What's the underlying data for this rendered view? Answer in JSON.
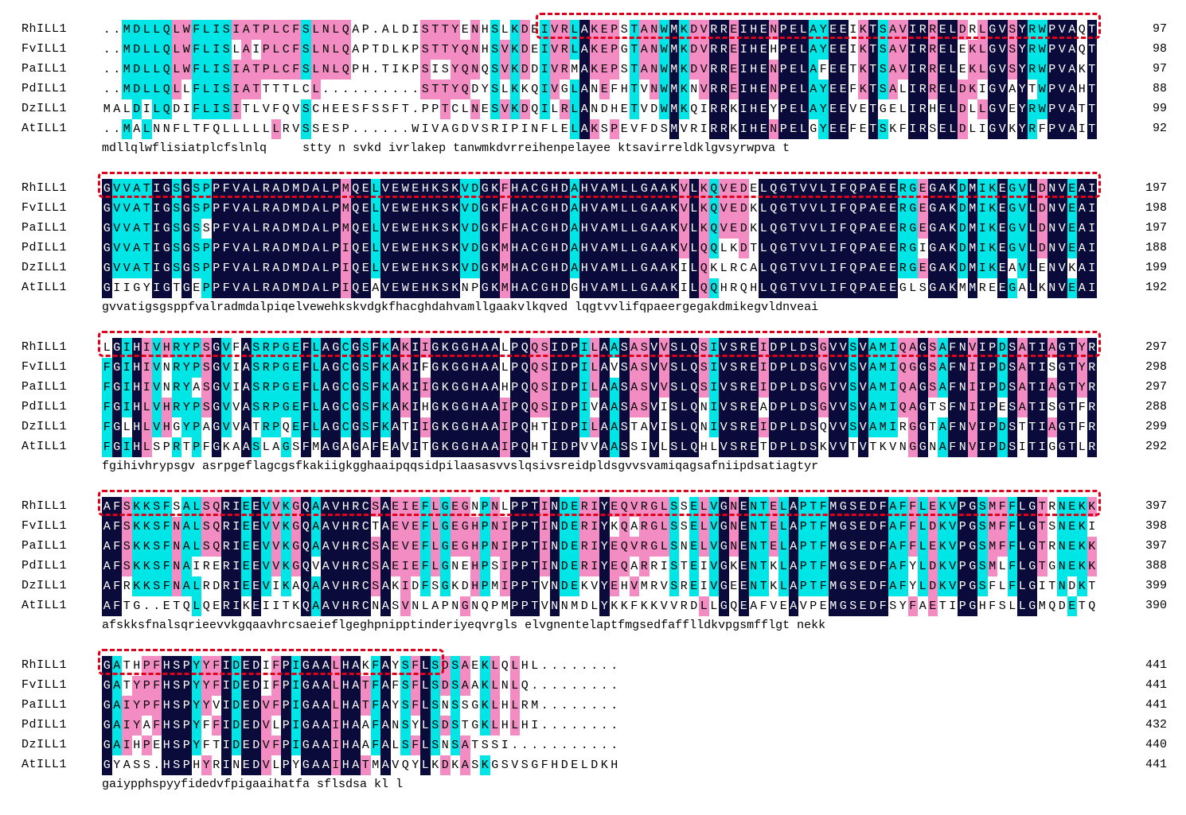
{
  "colors": {
    "identical": "#0b0b3b",
    "high": "#00e5e5",
    "low": "#f48cc4",
    "box": "#e0001a"
  },
  "blocks": [
    {
      "rows": [
        {
          "name": "RhILL1",
          "seq": "..MDLLQLWFLISIATPLCFSLNLQAP.ALDISTTYENHSLKDEIVRLAKEPSTANWMKDVRREIHENPELAYEEIKTSAVIRRELDRLGVSYRWPVAQT",
          "num": "97"
        },
        {
          "name": "FvILL1",
          "seq": "..MDLLQLWFLISLAIPLCFSLNLQAPTDLKPSTTYQNHSVKDEIVRLAKEPGTANWMKDVRREIHEHPELAYEEIKTSAVIRRELEKLGVSYRWPVAQT",
          "num": "98"
        },
        {
          "name": "PaILL1",
          "seq": "..MDLLQLWFLISIATPLCFSLNLQPH.TIKPSISYQNQSVKDDIVRMAKEPSTANWMKDVRREIHENPELAFEETKTSAVIRRELEKLGVSYRWPVAKT",
          "num": "97"
        },
        {
          "name": "PdILL1",
          "seq": "..MDLLQLLFLISIATTTTLCL..........STTYQDYSLKKQIVGLANEFHTVNWMKNVRREIHENPELAYEEFKTSALIRRELDKIGVAYTWPVAHT",
          "num": "88"
        },
        {
          "name": "DzILL1",
          "seq": "MALDILQDIFLISITLVFQVSCHEESFSSFT.PPTCLNESVKDQILRLANDHETVDWMKQIRRKIHEYPELAYEEVETGELIRHELDLLGVEYRWPVATT",
          "num": "99"
        },
        {
          "name": "AtILL1",
          "seq": "..MALNNFLTFQLLLLLLRVSSESP......WIVAGDVSRIPINFLELAKSPEVFDSMVRIRRKIHENPELGYEEFETSKFIRSELDLIGVKYRFPVAIT",
          "num": "92"
        }
      ],
      "consensus": "mdllqlwflisiatplcfslnlq     stty n svkd ivrlakep tanwmkdvrreihenpelayee ktsavirreldklgvsyrwpva t"
    },
    {
      "rows": [
        {
          "name": "RhILL1",
          "seq": "GVVATIGSGSPPFVALRADMDALPMQELVEWEHKSKVDGKFHACGHDAHVAMLLGAAKVLKQVEDELQGTVVLIFQPAEERGEGAKDMIKEGVLDNVEAI",
          "num": "197"
        },
        {
          "name": "FvILL1",
          "seq": "GVVATIGSGSPPFVALRADMDALPMQELVEWEHKSKVDGKFHACGHDAHVAMLLGAAKVLKQVEDKLQGTVVLIFQPAEERGEGAKDMIKEGVLDNVEAI",
          "num": "198"
        },
        {
          "name": "PaILL1",
          "seq": "GVVATIGSGSSPFVALRADMDALPMQELVEWEHKSKVDGKFHACGHDAHVAMLLGAAKVLKQVEDKLQGTVVLIFQPAEERGEGAKDMIKEGVLDNVEAI",
          "num": "197"
        },
        {
          "name": "PdILL1",
          "seq": "GVVATIGSGSPPFVALRADMDALPIQELVEWEHKSKVDGKMHACGHDAHVAMLLGAAKVLQQLKDTLQGTVVLIFQPAEERGIGAKDMIKEGVLDNVEAI",
          "num": "188"
        },
        {
          "name": "DzILL1",
          "seq": "GVVATIGSGSPPFVALRADMDALPIQELVEWEHKSKVDGKMHACGHDAHVAMLLGAAKILQKLRCALQGTVVLIFQPAEERGEGAKDMIKEAVLENVKAI",
          "num": "199"
        },
        {
          "name": "AtILL1",
          "seq": "GIIGYIGTGEPPFVALRADMDALPIQEAVEWEHKSKNPGKMHACGHDGHVAMLLGAAKILQQHRQHLQGTVVLIFQPAEEGLSGAKMMREEGALKNVEAI",
          "num": "192"
        }
      ],
      "consensus": "gvvatigsgsppfvalradmdalpiqelvewehkskvdgkfhacghdahvamllgaakvlkqved lqgtvvlifqpaeergegakdmikegvldnveai"
    },
    {
      "rows": [
        {
          "name": "RhILL1",
          "seq": "LGIHIVHRYPSGVFASRPGEFLAGCGSFKAKIIGKGGHAALPQQSIDPILAASASVVSLQSIVSREIDPLDSGVVSVAMIQAGSAFNVIPDSATIAGTYR",
          "num": "297"
        },
        {
          "name": "FvILL1",
          "seq": "FGIHIVNRYPSGVIASRPGEFLAGCGSFKAKIFGKGGHAALPQQSIDPILAVSASVVSLQSIVSREIDPLDSGVVSVAMIQGGSAFNIIPDSATISGTYR",
          "num": "298"
        },
        {
          "name": "PaILL1",
          "seq": "FGIHIVNRYASGVIASRPGEFLAGCGSFKAKIIGKGGHAAHPQQSIDPILAASASVVSLQSIVSREIDPLDSGVVSVAMIQAGSAFNIIPDSATIAGTYR",
          "num": "297"
        },
        {
          "name": "PdILL1",
          "seq": "FGIHLVHRYPSGVVASRPGEFLAGCGSFKAKIHGKGGHAAIPQQSIDPIVAASASVISLQNIVSREADPLDSGVVSVAMIQAGTSFNIIPESATISGTFR",
          "num": "288"
        },
        {
          "name": "DzILL1",
          "seq": "FGLHLVHGYPAGVVATRPQEFLAGCGSFKATIIGKGGHAAIPQHTIDPILAASTAVISLQNIVSREIDPLDSQVVSVAMIRGGTAFNVIPDSTTIAGTFR",
          "num": "299"
        },
        {
          "name": "AtILL1",
          "seq": "FGIHLSPRTPFGKAASLAGSFMAGAGAFEAVITGKGGHAAIPQHTIDPVVAASSIVLSLQHLVSRETDPLDSKVVTVTKVNGGNAFNVIPDSITIGGTLR",
          "num": "292"
        }
      ],
      "consensus": "fgihivhrypsgv asrpgeflagcgsfkakiigkgghaaipqqsidpilaasasvvslqsivsreidpldsgvvsvamiqagsafniipdsatiagtyr"
    },
    {
      "rows": [
        {
          "name": "RhILL1",
          "seq": "AFSKKSFSALSQRIEEVVKGQAAVHRCSAEIEFLGEGNPNLPPTINDERIYEQVRGLSSELVGNENTELAPTFMGSEDFAFFLEKVPGSMFFLGTRNEKK",
          "num": "397"
        },
        {
          "name": "FvILL1",
          "seq": "AFSKKSFNALSQRIEEVVKGQAAVHRCTAEVEFLGEGHPNIPPTINDERIYKQARGLSSELVGNENTELAPTFMGSEDFAFFLDKVPGSMFFLGTSNEKI",
          "num": "398"
        },
        {
          "name": "PaILL1",
          "seq": "AFSKKSFNALSQRIEEVVKGQAAVHRCSAEVEFLGEGHPNIPPTINDERIYEQVRGLSNELVGNENTELAPTFMGSEDFAFFLEKVPGSMFFLGTRNEKK",
          "num": "397"
        },
        {
          "name": "PdILL1",
          "seq": "AFSKKSFNAIRERIEEVVKGQVAVHRCSAEIEFLGNEHPSIPPTINDERIYEQARRISTEIVGKENTKLAPTFMGSEDFAFYLDKVPGSMLFLGTGNEKK",
          "num": "388"
        },
        {
          "name": "DzILL1",
          "seq": "AFRKKSFNALRDRIEEVIKAQAAVHRCSAKIDFSGKDHPMIPPTVNDEKVYEHVMRVSREIVGEENTKLAPTFMGSEDFAFYLDKVPGSFLFLGITNDKT",
          "num": "399"
        },
        {
          "name": "AtILL1",
          "seq": "AFTG..ETQLQERIKEIITKQAAVHRCNASVNLAPNGNQPMPPTVNNMDLYKKFKKVVRDLLGQEAFVEAVPEMGSEDFSYFAETIPGHFSLLGMQDETQ",
          "num": "390"
        }
      ],
      "consensus": "afskksfnalsqrieevvkgqaavhrcsaeieflgeghpnipptinderiyeqvrgls elvgnentelaptfmgsedfafflldkvpgsmfflgt nekk"
    },
    {
      "rows": [
        {
          "name": "RhILL1",
          "seq": "GATHPFHSPYYFIDEDIFPIGAALHAKFAYSFLSDSAEKLQLHL........",
          "num": "441"
        },
        {
          "name": "FvILL1",
          "seq": "GATYPFHSPYYFIDEDIFPIGAALHATFAFSFLSDSAAKLNLQ.........",
          "num": "441"
        },
        {
          "name": "PaILL1",
          "seq": "GAIYPFHSPYYVIDEDVFPIGAALHATFAYSFLSNSSGKLHLRM........",
          "num": "441"
        },
        {
          "name": "PdILL1",
          "seq": "GAIYAFHSPYFFIDEDVLPIGAAIHAAFANSYLSDSTGKLHLHI........",
          "num": "432"
        },
        {
          "name": "DzILL1",
          "seq": "GAIHPEHSPYFTIDEDVFPIGAAIHAAFALSFLSNSATSSI...........",
          "num": "440"
        },
        {
          "name": "AtILL1",
          "seq": "GYASS.HSPHYRINEDVLPYGAAIHATMAVQYLKDKASKGSVSGFHDELDKH",
          "num": "441"
        }
      ],
      "consensus": "gaiypphspyyfidedvfpigaaihatfa sflsdsa kl l"
    }
  ]
}
